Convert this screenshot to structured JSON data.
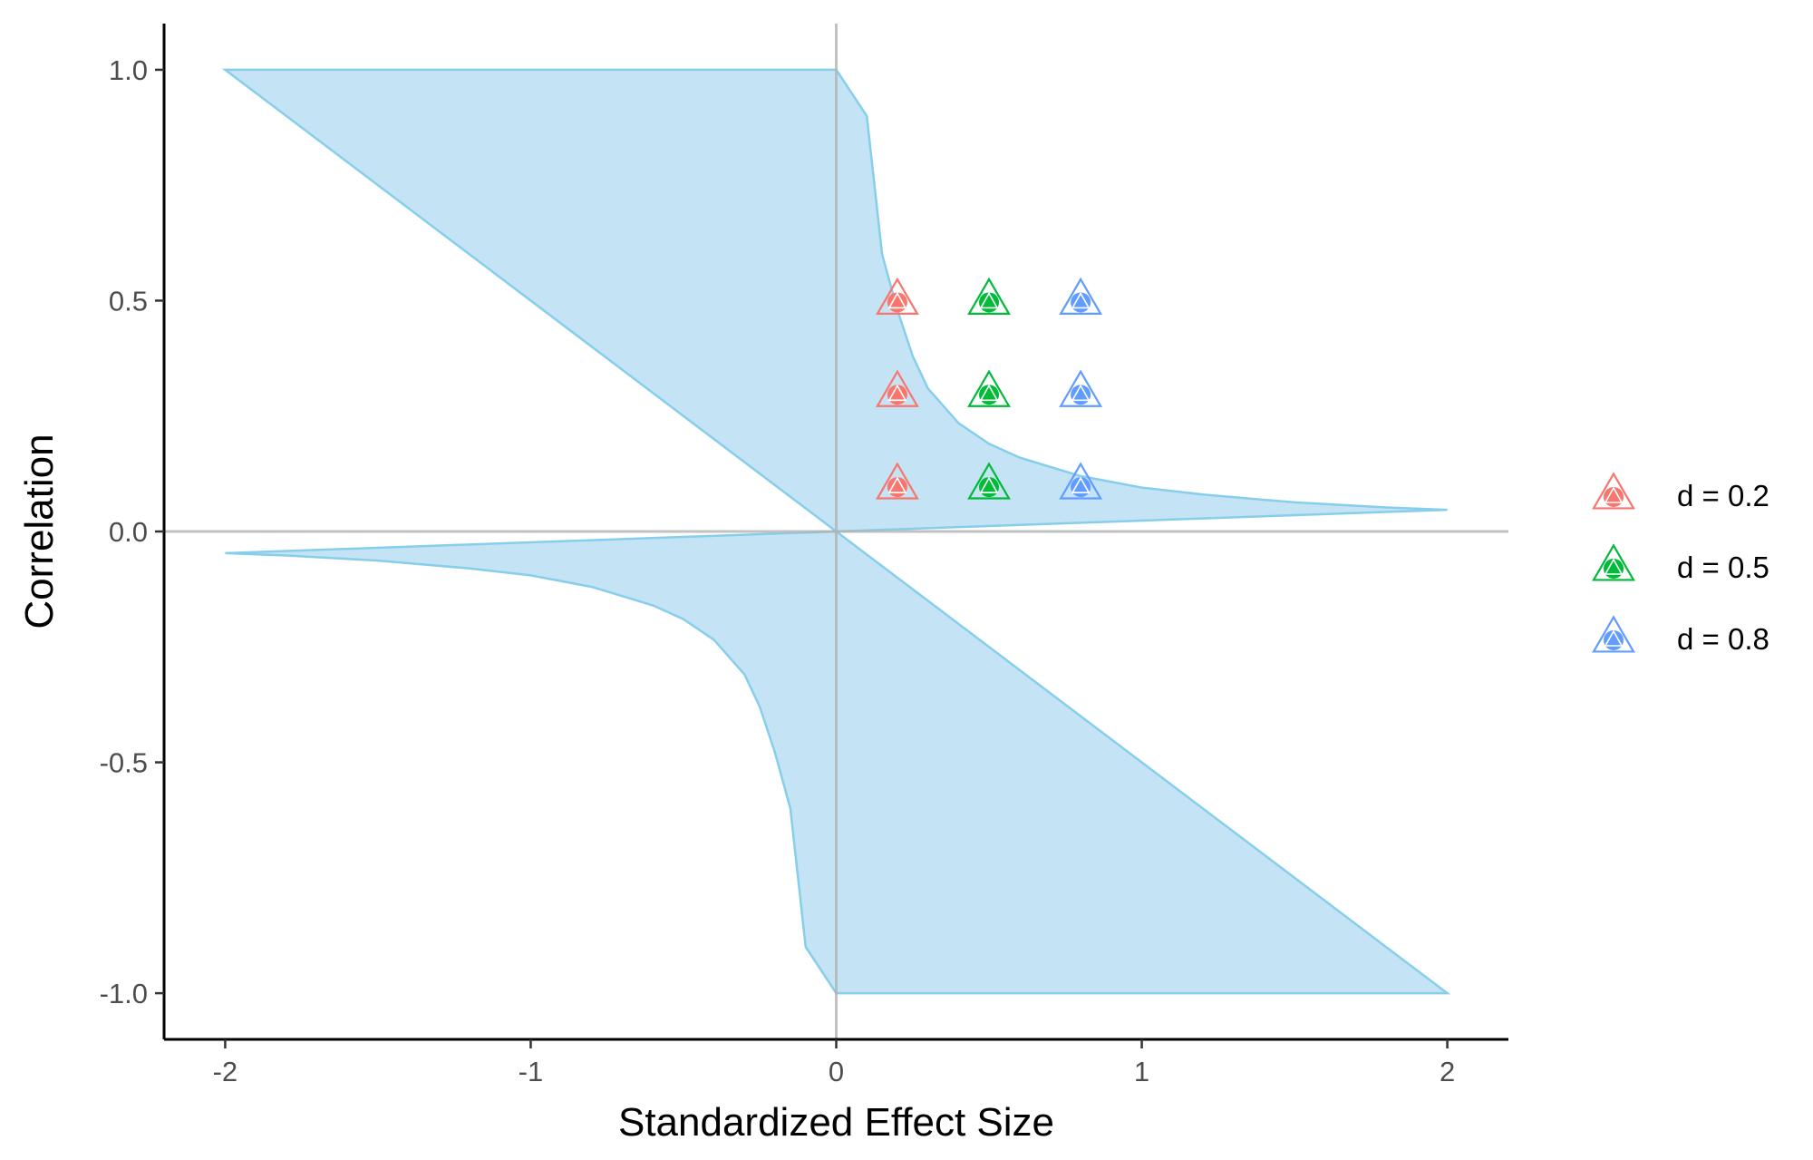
{
  "chart_data": {
    "type": "scatter",
    "title": "",
    "xlabel": "Standardized Effect Size",
    "ylabel": "Correlation",
    "xlim": [
      -2.2,
      2.2
    ],
    "ylim": [
      -1.1,
      1.1
    ],
    "x_ticks": [
      -2,
      -1,
      0,
      1,
      2
    ],
    "x_tick_labels": [
      "-2",
      "-1",
      "0",
      "1",
      "2"
    ],
    "y_ticks": [
      -1.0,
      -0.5,
      0.0,
      0.5,
      1.0
    ],
    "y_tick_labels": [
      "-1.0",
      "-0.5",
      "0.0",
      "0.5",
      "1.0"
    ],
    "grid": false,
    "reference_lines": {
      "x": 0,
      "y": 0
    },
    "legend_position": "right",
    "shaded_region": {
      "fill": "#c4e3f5",
      "stroke": "#87ceeb",
      "upper": [
        [
          -2,
          1.0
        ],
        [
          0,
          1.0
        ],
        [
          0.1,
          0.9
        ],
        [
          0.15,
          0.6
        ],
        [
          0.2,
          0.48
        ],
        [
          0.25,
          0.38
        ],
        [
          0.3,
          0.31
        ],
        [
          0.4,
          0.235
        ],
        [
          0.5,
          0.19
        ],
        [
          0.6,
          0.16
        ],
        [
          0.8,
          0.12
        ],
        [
          1.0,
          0.095
        ],
        [
          1.2,
          0.08
        ],
        [
          1.5,
          0.063
        ],
        [
          1.8,
          0.052
        ],
        [
          2.0,
          0.047
        ]
      ],
      "lower": [
        [
          -2,
          -0.047
        ],
        [
          -1.8,
          -0.052
        ],
        [
          -1.5,
          -0.063
        ],
        [
          -1.2,
          -0.08
        ],
        [
          -1.0,
          -0.095
        ],
        [
          -0.8,
          -0.12
        ],
        [
          -0.6,
          -0.16
        ],
        [
          -0.5,
          -0.19
        ],
        [
          -0.4,
          -0.235
        ],
        [
          -0.3,
          -0.31
        ],
        [
          -0.25,
          -0.38
        ],
        [
          -0.2,
          -0.48
        ],
        [
          -0.15,
          -0.6
        ],
        [
          -0.1,
          -0.9
        ],
        [
          0,
          -1.0
        ],
        [
          2,
          -1.0
        ]
      ]
    },
    "series": [
      {
        "name": "d = 0.2",
        "color": "#f8766d",
        "points": [
          [
            0.2,
            0.1
          ],
          [
            0.2,
            0.3
          ],
          [
            0.2,
            0.5
          ]
        ]
      },
      {
        "name": "d = 0.5",
        "color": "#00ba38",
        "points": [
          [
            0.5,
            0.1
          ],
          [
            0.5,
            0.3
          ],
          [
            0.5,
            0.5
          ]
        ]
      },
      {
        "name": "d = 0.8",
        "color": "#619cff",
        "points": [
          [
            0.8,
            0.1
          ],
          [
            0.8,
            0.3
          ],
          [
            0.8,
            0.5
          ]
        ]
      }
    ]
  }
}
